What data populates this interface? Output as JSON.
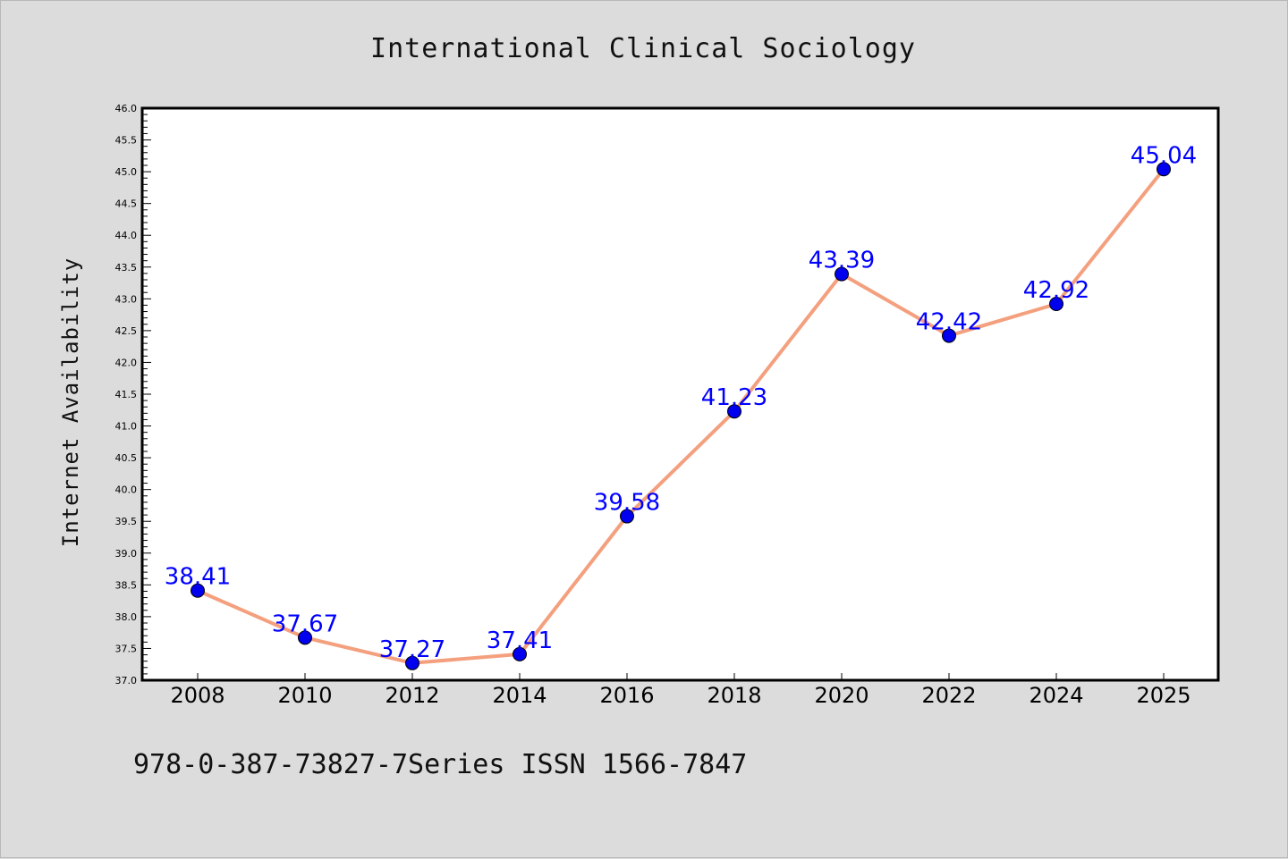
{
  "chart_data": {
    "type": "line",
    "title": "International Clinical Sociology",
    "xlabel": "",
    "ylabel": "Internet Availability",
    "categories": [
      "2008",
      "2010",
      "2012",
      "2014",
      "2016",
      "2018",
      "2020",
      "2022",
      "2024",
      "2025"
    ],
    "series": [
      {
        "values": [
          38.41,
          37.67,
          37.27,
          37.41,
          39.58,
          41.23,
          43.39,
          42.42,
          42.92,
          45.04
        ]
      }
    ],
    "data_labels": [
      "38.41",
      "37.67",
      "37.27",
      "37.41",
      "39.58",
      "41.23",
      "43.39",
      "42.42",
      "42.92",
      "45.04"
    ],
    "ylim": [
      37.0,
      46.0
    ],
    "yticks": [
      "37.0",
      "37.5",
      "38.0",
      "38.5",
      "39.0",
      "39.5",
      "40.0",
      "40.5",
      "41.0",
      "41.5",
      "42.0",
      "42.5",
      "43.0",
      "43.5",
      "44.0",
      "44.5",
      "45.0",
      "45.5",
      "46.0"
    ],
    "grid": false,
    "legend": "none",
    "line_color": "#f4a07e",
    "marker_color": "#0000ee",
    "label_color": "#0000ff",
    "plot_background": "#ffffff",
    "figure_background": "#dcdcdc"
  },
  "footer": {
    "text": "978-0-387-73827-7Series ISSN 1566-7847"
  }
}
